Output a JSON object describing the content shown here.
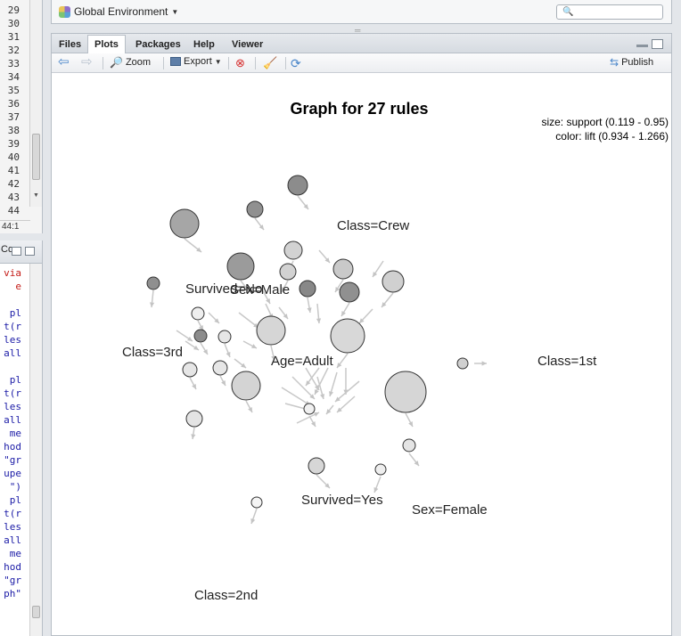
{
  "editor": {
    "line_numbers": [
      "29",
      "30",
      "31",
      "32",
      "33",
      "34",
      "35",
      "36",
      "37",
      "38",
      "39",
      "40",
      "41",
      "42",
      "43",
      "44"
    ],
    "cursor_position": "44:1"
  },
  "console": {
    "tab_label": "Co",
    "code_lines": [
      {
        "text": "via",
        "color": "red"
      },
      {
        "text": "e",
        "color": "red"
      },
      {
        "text": "",
        "color": "blue"
      },
      {
        "text": "pl",
        "color": "blue"
      },
      {
        "text": "t(r",
        "color": "blue"
      },
      {
        "text": "les",
        "color": "blue"
      },
      {
        "text": "all",
        "color": "blue"
      },
      {
        "text": "",
        "color": "blue"
      },
      {
        "text": "pl",
        "color": "blue"
      },
      {
        "text": "t(r",
        "color": "blue"
      },
      {
        "text": "les",
        "color": "blue"
      },
      {
        "text": "all",
        "color": "blue"
      },
      {
        "text": "me",
        "color": "blue"
      },
      {
        "text": "hod",
        "color": "blue"
      },
      {
        "text": "\"gr",
        "color": "blue"
      },
      {
        "text": "upe",
        "color": "blue"
      },
      {
        "text": "\")",
        "color": "blue"
      },
      {
        "text": "pl",
        "color": "blue"
      },
      {
        "text": "t(r",
        "color": "blue"
      },
      {
        "text": "les",
        "color": "blue"
      },
      {
        "text": "all",
        "color": "blue"
      },
      {
        "text": "me",
        "color": "blue"
      },
      {
        "text": "hod",
        "color": "blue"
      },
      {
        "text": "\"gr",
        "color": "blue"
      },
      {
        "text": "ph\"",
        "color": "blue"
      }
    ]
  },
  "environment": {
    "selector_label": "Global Environment",
    "search_placeholder": ""
  },
  "plots_pane": {
    "tabs": [
      "Files",
      "Plots",
      "Packages",
      "Help",
      "Viewer"
    ],
    "active_tab": "Plots",
    "toolbar": {
      "zoom_label": "Zoom",
      "export_label": "Export",
      "publish_label": "Publish"
    }
  },
  "chart_data": {
    "type": "graph",
    "title": "Graph for 27 rules",
    "legend": {
      "size_text": "size: support (0.119 - 0.95)",
      "color_text": "color: lift (0.934 - 1.266)",
      "placement": "top-right"
    },
    "item_labels": [
      "Class=Crew",
      "Survived=No",
      "Sex=Male",
      "Class=3rd",
      "Age=Adult",
      "Class=1st",
      "Survived=Yes",
      "Sex=Female",
      "Class=2nd"
    ]
  }
}
